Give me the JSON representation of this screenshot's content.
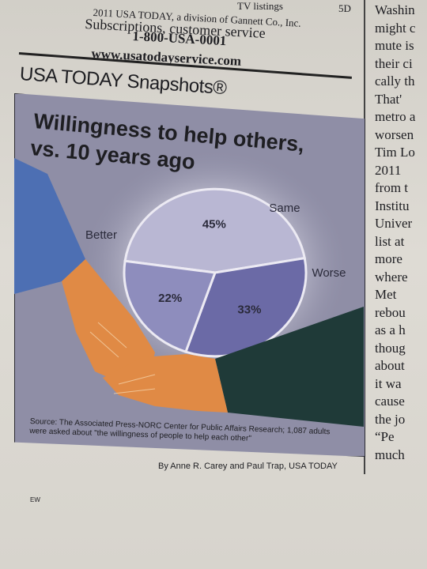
{
  "header": {
    "tv_listings": "TV listings",
    "page_ref": "5D",
    "copyright": "2011 USA TODAY, a division of Gannett Co., Inc.",
    "subscriptions": "Subscriptions, customer service",
    "phone": "1-800-USA-0001",
    "website": "www.usatodayservice.com"
  },
  "snapshot_brand": "USA TODAY Snapshots®",
  "chart_data": {
    "type": "pie",
    "title": "Willingness to help others, vs. 10 years ago",
    "title_line1": "Willingness to help others,",
    "title_line2": "vs. 10 years ago",
    "slices": [
      {
        "label": "Same",
        "value": 45,
        "display": "45%",
        "color": "#b9b7d3"
      },
      {
        "label": "Worse",
        "value": 33,
        "display": "33%",
        "color": "#6b6aa6"
      },
      {
        "label": "Better",
        "value": 22,
        "display": "22%",
        "color": "#8e8dbd"
      }
    ]
  },
  "source_text": "Source: The Associated Press-NORC Center for Public Affairs Research; 1,087 adults were asked about \"the willingness of people to help each other\"",
  "byline": "By Anne R. Carey and Paul Trap, USA TODAY",
  "bottom_mark": "EW",
  "colors": {
    "panel": "#8f8ea6",
    "sleeve_left": "#4d6fb3",
    "sleeve_right": "#1f3a38",
    "hand": "#e08a45"
  },
  "column_text": [
    "Washin",
    "might c",
    "mute is",
    "their ci",
    "cally th",
    "That'",
    "metro a",
    "worsen",
    "Tim Lo",
    "2011",
    "from t",
    "Institu",
    "Univer",
    "list at",
    "more",
    "where",
    "Met",
    "rebou",
    "as a h",
    "thoug",
    "about",
    "it wa",
    "cause",
    "the jo",
    "“Pe",
    "much"
  ]
}
